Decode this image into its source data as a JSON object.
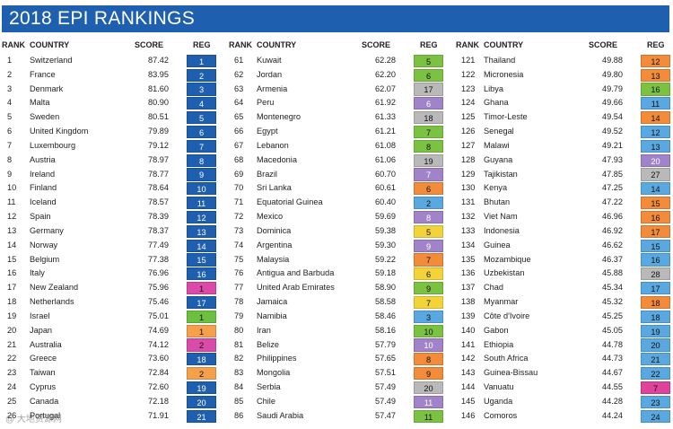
{
  "title": "2018 EPI RANKINGS",
  "headers": {
    "rank": "RANK",
    "country": "COUNTRY",
    "score": "SCORE",
    "reg": "REG"
  },
  "region_colors": {
    "1": "#3fae3f",
    "2": "#e63d9c",
    "3": "#66a7d9",
    "4": "#f59a3b",
    "5": "#2f7dc1",
    "6": "#a8c84a",
    "7": "#a083c8",
    "8": "#f27e2a",
    "9": "#8a4fb0",
    "10": "#7cc242",
    "11": "#3ea0e0",
    "12": "#f2a35e",
    "13": "#4a8fd6",
    "14": "#5ca84f",
    "15": "#1f7ad1",
    "16": "#6dbe45",
    "17": "#a6a8ab",
    "18": "#b5b5b5",
    "19": "#5aa0e0",
    "20": "#b49ad0",
    "21": "#2676c9",
    "22": "#f28b8b",
    "27": "#c8c8c8",
    "28": "#bdbdbd",
    "default_blue": "#1f5faf"
  },
  "columns": [
    [
      {
        "rank": "1",
        "country": "Switzerland",
        "score": "87.42",
        "reg": "1",
        "color": "#1f5faf"
      },
      {
        "rank": "2",
        "country": "France",
        "score": "83.95",
        "reg": "2",
        "color": "#1f5faf"
      },
      {
        "rank": "3",
        "country": "Denmark",
        "score": "81.60",
        "reg": "3",
        "color": "#1f5faf"
      },
      {
        "rank": "4",
        "country": "Malta",
        "score": "80.90",
        "reg": "4",
        "color": "#1f5faf"
      },
      {
        "rank": "5",
        "country": "Sweden",
        "score": "80.51",
        "reg": "5",
        "color": "#1f5faf"
      },
      {
        "rank": "6",
        "country": "United Kingdom",
        "score": "79.89",
        "reg": "6",
        "color": "#1f5faf"
      },
      {
        "rank": "7",
        "country": "Luxembourg",
        "score": "79.12",
        "reg": "7",
        "color": "#1f5faf"
      },
      {
        "rank": "8",
        "country": "Austria",
        "score": "78.97",
        "reg": "8",
        "color": "#1f5faf"
      },
      {
        "rank": "9",
        "country": "Ireland",
        "score": "78.77",
        "reg": "9",
        "color": "#1f5faf"
      },
      {
        "rank": "10",
        "country": "Finland",
        "score": "78.64",
        "reg": "10",
        "color": "#1f5faf"
      },
      {
        "rank": "11",
        "country": "Iceland",
        "score": "78.57",
        "reg": "11",
        "color": "#1f5faf"
      },
      {
        "rank": "12",
        "country": "Spain",
        "score": "78.39",
        "reg": "12",
        "color": "#1f5faf"
      },
      {
        "rank": "13",
        "country": "Germany",
        "score": "78.37",
        "reg": "13",
        "color": "#1f5faf"
      },
      {
        "rank": "14",
        "country": "Norway",
        "score": "77.49",
        "reg": "14",
        "color": "#1f5faf"
      },
      {
        "rank": "15",
        "country": "Belgium",
        "score": "77.38",
        "reg": "15",
        "color": "#1f5faf"
      },
      {
        "rank": "16",
        "country": "Italy",
        "score": "76.96",
        "reg": "16",
        "color": "#1f5faf"
      },
      {
        "rank": "17",
        "country": "New Zealand",
        "score": "75.96",
        "reg": "1",
        "color": "#d94ba6"
      },
      {
        "rank": "18",
        "country": "Netherlands",
        "score": "75.46",
        "reg": "17",
        "color": "#1f5faf"
      },
      {
        "rank": "19",
        "country": "Israel",
        "score": "75.01",
        "reg": "1",
        "color": "#6cbf3f"
      },
      {
        "rank": "20",
        "country": "Japan",
        "score": "74.69",
        "reg": "1",
        "color": "#f5a04a"
      },
      {
        "rank": "21",
        "country": "Australia",
        "score": "74.12",
        "reg": "2",
        "color": "#d94ba6"
      },
      {
        "rank": "22",
        "country": "Greece",
        "score": "73.60",
        "reg": "18",
        "color": "#1f5faf"
      },
      {
        "rank": "23",
        "country": "Taiwan",
        "score": "72.84",
        "reg": "2",
        "color": "#f5a04a"
      },
      {
        "rank": "24",
        "country": "Cyprus",
        "score": "72.60",
        "reg": "19",
        "color": "#1f5faf"
      },
      {
        "rank": "25",
        "country": "Canada",
        "score": "72.18",
        "reg": "20",
        "color": "#1f5faf"
      },
      {
        "rank": "26",
        "country": "Portugal",
        "score": "71.91",
        "reg": "21",
        "color": "#1f5faf"
      }
    ],
    [
      {
        "rank": "61",
        "country": "Kuwait",
        "score": "62.28",
        "reg": "5",
        "color": "#7cc242"
      },
      {
        "rank": "62",
        "country": "Jordan",
        "score": "62.20",
        "reg": "6",
        "color": "#7cc242"
      },
      {
        "rank": "63",
        "country": "Armenia",
        "score": "62.07",
        "reg": "17",
        "color": "#b9b9b9"
      },
      {
        "rank": "64",
        "country": "Peru",
        "score": "61.92",
        "reg": "6",
        "color": "#a083c8"
      },
      {
        "rank": "65",
        "country": "Montenegro",
        "score": "61.33",
        "reg": "18",
        "color": "#b9b9b9"
      },
      {
        "rank": "66",
        "country": "Egypt",
        "score": "61.21",
        "reg": "7",
        "color": "#7cc242"
      },
      {
        "rank": "67",
        "country": "Lebanon",
        "score": "61.08",
        "reg": "8",
        "color": "#7cc242"
      },
      {
        "rank": "68",
        "country": "Macedonia",
        "score": "61.06",
        "reg": "19",
        "color": "#b9b9b9"
      },
      {
        "rank": "69",
        "country": "Brazil",
        "score": "60.70",
        "reg": "7",
        "color": "#a083c8"
      },
      {
        "rank": "70",
        "country": "Sri Lanka",
        "score": "60.61",
        "reg": "6",
        "color": "#f28b3a"
      },
      {
        "rank": "71",
        "country": "Equatorial Guinea",
        "score": "60.40",
        "reg": "2",
        "color": "#5aa8e0"
      },
      {
        "rank": "72",
        "country": "Mexico",
        "score": "59.69",
        "reg": "8",
        "color": "#a083c8"
      },
      {
        "rank": "73",
        "country": "Dominica",
        "score": "59.38",
        "reg": "5",
        "color": "#f2d43a"
      },
      {
        "rank": "74",
        "country": "Argentina",
        "score": "59.30",
        "reg": "9",
        "color": "#a083c8"
      },
      {
        "rank": "75",
        "country": "Malaysia",
        "score": "59.22",
        "reg": "7",
        "color": "#f28b3a"
      },
      {
        "rank": "76",
        "country": "Antigua and Barbuda",
        "score": "59.18",
        "reg": "6",
        "color": "#f2d43a"
      },
      {
        "rank": "77",
        "country": "United Arab Emirates",
        "score": "58.90",
        "reg": "9",
        "color": "#7cc242"
      },
      {
        "rank": "78",
        "country": "Jamaica",
        "score": "58.58",
        "reg": "7",
        "color": "#f2d43a"
      },
      {
        "rank": "79",
        "country": "Namibia",
        "score": "58.46",
        "reg": "3",
        "color": "#5aa8e0"
      },
      {
        "rank": "80",
        "country": "Iran",
        "score": "58.16",
        "reg": "10",
        "color": "#7cc242"
      },
      {
        "rank": "81",
        "country": "Belize",
        "score": "57.79",
        "reg": "10",
        "color": "#a083c8"
      },
      {
        "rank": "82",
        "country": "Philippines",
        "score": "57.65",
        "reg": "8",
        "color": "#f28b3a"
      },
      {
        "rank": "83",
        "country": "Mongolia",
        "score": "57.51",
        "reg": "9",
        "color": "#f28b3a"
      },
      {
        "rank": "84",
        "country": "Serbia",
        "score": "57.49",
        "reg": "20",
        "color": "#b9b9b9"
      },
      {
        "rank": "85",
        "country": "Chile",
        "score": "57.49",
        "reg": "11",
        "color": "#a083c8"
      },
      {
        "rank": "86",
        "country": "Saudi Arabia",
        "score": "57.47",
        "reg": "11",
        "color": "#7cc242"
      }
    ],
    [
      {
        "rank": "121",
        "country": "Thailand",
        "score": "49.88",
        "reg": "12",
        "color": "#f28b3a"
      },
      {
        "rank": "122",
        "country": "Micronesia",
        "score": "49.80",
        "reg": "13",
        "color": "#f28b3a"
      },
      {
        "rank": "123",
        "country": "Libya",
        "score": "49.79",
        "reg": "16",
        "color": "#7cc242"
      },
      {
        "rank": "124",
        "country": "Ghana",
        "score": "49.66",
        "reg": "11",
        "color": "#5aa8e0"
      },
      {
        "rank": "125",
        "country": "Timor-Leste",
        "score": "49.54",
        "reg": "14",
        "color": "#f28b3a"
      },
      {
        "rank": "126",
        "country": "Senegal",
        "score": "49.52",
        "reg": "12",
        "color": "#5aa8e0"
      },
      {
        "rank": "127",
        "country": "Malawi",
        "score": "49.21",
        "reg": "13",
        "color": "#5aa8e0"
      },
      {
        "rank": "128",
        "country": "Guyana",
        "score": "47.93",
        "reg": "20",
        "color": "#a083c8"
      },
      {
        "rank": "129",
        "country": "Tajikistan",
        "score": "47.85",
        "reg": "27",
        "color": "#b9b9b9"
      },
      {
        "rank": "130",
        "country": "Kenya",
        "score": "47.25",
        "reg": "14",
        "color": "#5aa8e0"
      },
      {
        "rank": "131",
        "country": "Bhutan",
        "score": "47.22",
        "reg": "15",
        "color": "#f28b3a"
      },
      {
        "rank": "132",
        "country": "Viet Nam",
        "score": "46.96",
        "reg": "16",
        "color": "#f28b3a"
      },
      {
        "rank": "133",
        "country": "Indonesia",
        "score": "46.92",
        "reg": "17",
        "color": "#f28b3a"
      },
      {
        "rank": "134",
        "country": "Guinea",
        "score": "46.62",
        "reg": "15",
        "color": "#5aa8e0"
      },
      {
        "rank": "135",
        "country": "Mozambique",
        "score": "46.37",
        "reg": "16",
        "color": "#5aa8e0"
      },
      {
        "rank": "136",
        "country": "Uzbekistan",
        "score": "45.88",
        "reg": "28",
        "color": "#b9b9b9"
      },
      {
        "rank": "137",
        "country": "Chad",
        "score": "45.34",
        "reg": "17",
        "color": "#5aa8e0"
      },
      {
        "rank": "138",
        "country": "Myanmar",
        "score": "45.32",
        "reg": "18",
        "color": "#f28b3a"
      },
      {
        "rank": "139",
        "country": "Côte d'Ivoire",
        "score": "45.25",
        "reg": "18",
        "color": "#5aa8e0"
      },
      {
        "rank": "140",
        "country": "Gabon",
        "score": "45.05",
        "reg": "19",
        "color": "#5aa8e0"
      },
      {
        "rank": "141",
        "country": "Ethiopia",
        "score": "44.78",
        "reg": "20",
        "color": "#5aa8e0"
      },
      {
        "rank": "142",
        "country": "South Africa",
        "score": "44.73",
        "reg": "21",
        "color": "#5aa8e0"
      },
      {
        "rank": "143",
        "country": "Guinea-Bissau",
        "score": "44.67",
        "reg": "22",
        "color": "#5aa8e0"
      },
      {
        "rank": "144",
        "country": "Vanuatu",
        "score": "44.55",
        "reg": "7",
        "color": "#e0439a"
      },
      {
        "rank": "145",
        "country": "Uganda",
        "score": "44.28",
        "reg": "23",
        "color": "#5aa8e0"
      },
      {
        "rank": "146",
        "country": "Comoros",
        "score": "44.24",
        "reg": "24",
        "color": "#5aa8e0"
      }
    ]
  ],
  "watermark": "@ 大地资源网"
}
